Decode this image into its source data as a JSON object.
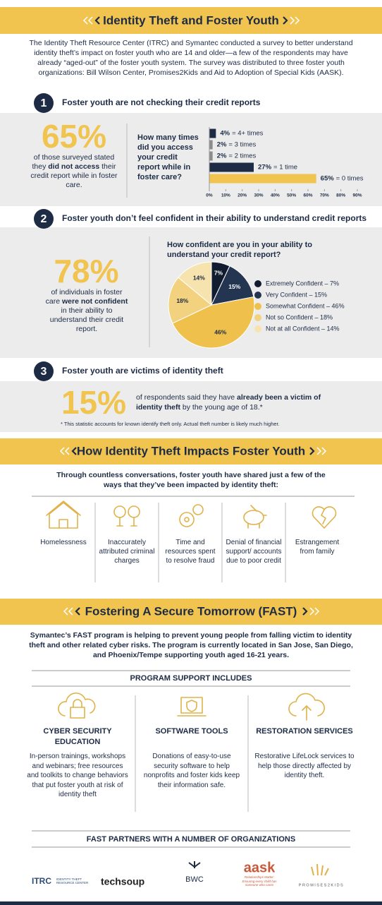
{
  "header": {
    "title": "Identity Theft and Foster Youth"
  },
  "intro": "The Identity Theft Resource Center (ITRC) and Symantec conducted a survey to better understand identity theft’s impact on foster youth who are 14 and older—a few of the respondents may have already “aged-out” of the foster youth system. The survey was distributed to three foster youth organizations: Bill Wilson Center, Promises2Kids and Aid to Adoption of Special Kids (AASK).",
  "findings": [
    {
      "number": "1",
      "title": "Foster youth are not checking their credit reports",
      "stat": "65%",
      "description": [
        "of those surveyed stated they ",
        "did not access",
        " their credit report while in foster care."
      ],
      "chart": {
        "type": "bar",
        "title": "How many times did you access your credit report while in foster care?",
        "categories": [
          "= 4+ times",
          "= 3 times",
          "= 2 times",
          "= 1 time",
          "= 0 times"
        ],
        "values": [
          4,
          2,
          2,
          27,
          65
        ],
        "value_labels": [
          "4%",
          "2%",
          "2%",
          "27%",
          "65%"
        ],
        "colors": [
          "#1d2b45",
          "#8c8c8c",
          "#8c8c8c",
          "#1d2b45",
          "#f1c34f"
        ],
        "xlim": [
          0,
          90
        ],
        "xticks": [
          {
            "value": 0,
            "label": "0%"
          },
          {
            "value": 10,
            "label": "10%"
          },
          {
            "value": 20,
            "label": "20%"
          },
          {
            "value": 30,
            "label": "30%"
          },
          {
            "value": 40,
            "label": "40%"
          },
          {
            "value": 50,
            "label": "50%"
          },
          {
            "value": 60,
            "label": "60%"
          },
          {
            "value": 70,
            "label": "70%"
          },
          {
            "value": 80,
            "label": "80%"
          },
          {
            "value": 90,
            "label": "90%"
          }
        ]
      }
    },
    {
      "number": "2",
      "title": "Foster youth don’t feel confident in their ability to understand credit reports",
      "stat": "78%",
      "description": [
        "of individuals in foster care ",
        "were not confident",
        " in their ability to understand their credit report."
      ],
      "chart": {
        "type": "pie",
        "title": "How confident are you in your ability to understand your credit report?",
        "categories": [
          "Extremely Confident – 7%",
          "Very Confident – 15%",
          "Somewhat Confident – 46%",
          "Not so Confident – 18%",
          "Not at all Confident – 14%"
        ],
        "values": [
          7,
          15,
          46,
          18,
          14
        ],
        "value_labels": [
          "7%",
          "15%",
          "46%",
          "18%",
          "14%"
        ],
        "colors": [
          "#121c30",
          "#243552",
          "#efc14c",
          "#f3d27f",
          "#f7e3ad"
        ]
      }
    },
    {
      "number": "3",
      "title": "Foster youth are victims of identity theft",
      "stat": "15%",
      "description": [
        "of respondents said they have ",
        "already been a victim of identity theft",
        " by the young age of 18.*"
      ],
      "footnote": "* This statistic accounts for known identify theft only. Actual theft number is likely much higher."
    }
  ],
  "impacts": {
    "title": "How Identity Theft Impacts Foster Youth",
    "intro": "Through countless conversations, foster youth have shared just a few of the ways that they’ve been impacted by identity theft:",
    "items": [
      "Homelessness",
      "Inaccurately attributed criminal charges",
      "Time and resources spent to resolve fraud",
      "Denial of financial support/ accounts due to poor credit",
      "Estrangement from family"
    ]
  },
  "fast": {
    "title": "Fostering A Secure Tomorrow (FAST)",
    "intro": "Symantec’s FAST program is helping to prevent young people from falling victim to identity theft and other related cyber risks. The program is currently located in San Jose, San Diego, and Phoenix/Tempe supporting youth aged 16-21 years.",
    "support_heading": "PROGRAM SUPPORT INCLUDES",
    "supports": [
      {
        "title": "CYBER SECURITY EDUCATION",
        "text": "In-person trainings, workshops and webinars; free resources and toolkits to change behaviors that put foster youth at risk of identity theft"
      },
      {
        "title": "SOFTWARE TOOLS",
        "text": "Donations of easy-to-use security software to help nonprofits and foster kids keep their information safe."
      },
      {
        "title": "RESTORATION SERVICES",
        "text": "Restorative LifeLock services to help those directly affected by identity theft."
      }
    ],
    "partners_heading": "FAST PARTNERS WITH A NUMBER OF ORGANIZATIONS",
    "partners": [
      {
        "name": "ITRC",
        "tagline": "IDENTITY THEFT RESOURCE CENTER"
      },
      {
        "name": "techsoup"
      },
      {
        "name": "BWC"
      },
      {
        "name": "aask",
        "tagline": "Relationships Matter: Ensuring every child has someone who cares"
      },
      {
        "name": "PROMISES2KIDS"
      }
    ]
  }
}
